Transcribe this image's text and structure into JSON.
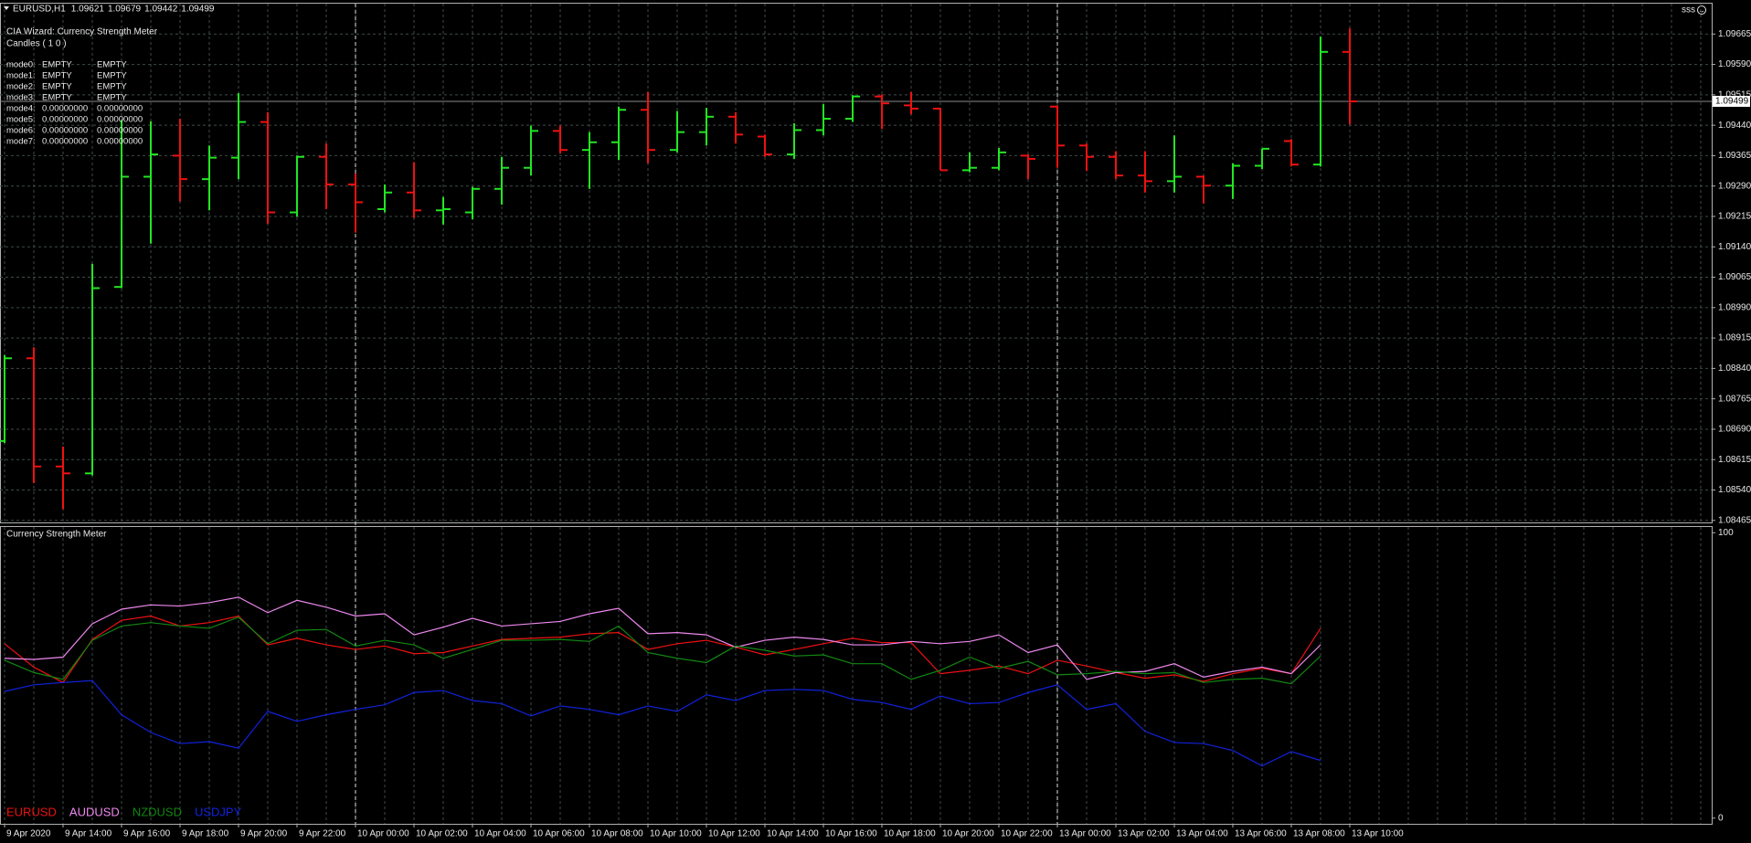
{
  "chart_data": [
    {
      "type": "ohlc",
      "title": "EURUSD,H1",
      "account": "sss",
      "annotations": [
        "CIA Wizard: Currency Strength Meter",
        "Candles ( 1 0 )"
      ],
      "info_rows": [
        [
          "mode0:",
          "EMPTY",
          "EMPTY"
        ],
        [
          "mode1:",
          "EMPTY",
          "EMPTY"
        ],
        [
          "mode2:",
          "EMPTY",
          "EMPTY"
        ],
        [
          "mode3:",
          "EMPTY",
          "EMPTY"
        ],
        [
          "mode4:",
          "0.00000000",
          "0.00000000"
        ],
        [
          "mode5:",
          "0.00000000",
          "0.00000000"
        ],
        [
          "mode6:",
          "0.00000000",
          "0.00000000"
        ],
        [
          "mode7:",
          "0.00000000",
          "0.00000000"
        ]
      ],
      "categories": [
        "9 Apr 2020",
        null,
        "9 Apr 14:00",
        null,
        "9 Apr 16:00",
        null,
        "9 Apr 18:00",
        null,
        "9 Apr 20:00",
        null,
        "9 Apr 22:00",
        null,
        "10 Apr 00:00",
        null,
        "10 Apr 02:00",
        null,
        "10 Apr 04:00",
        null,
        "10 Apr 06:00",
        null,
        "10 Apr 08:00",
        null,
        "10 Apr 10:00",
        null,
        "10 Apr 12:00",
        null,
        "10 Apr 14:00",
        null,
        "10 Apr 16:00",
        null,
        "10 Apr 18:00",
        null,
        "10 Apr 20:00",
        null,
        "10 Apr 22:00",
        null,
        "13 Apr 00:00",
        null,
        "13 Apr 02:00",
        null,
        "13 Apr 04:00",
        null,
        "13 Apr 06:00",
        null,
        "13 Apr 08:00",
        null,
        "13 Apr 10:00"
      ],
      "open": [
        1.08661,
        1.08865,
        1.08598,
        1.08581,
        1.09041,
        1.09313,
        1.09365,
        1.09307,
        1.0936,
        1.09448,
        1.09225,
        1.09362,
        1.09294,
        1.09233,
        1.09274,
        1.0923,
        1.09225,
        1.09283,
        1.09335,
        1.09426,
        1.09379,
        1.09398,
        1.09478,
        1.09379,
        1.09423,
        1.09461,
        1.09412,
        1.09368,
        1.09428,
        1.09456,
        1.09511,
        1.09489,
        1.09481,
        1.09329,
        1.09335,
        1.09365,
        1.09486,
        1.0939,
        1.09362,
        1.09316,
        1.09302,
        1.09313,
        1.09291,
        1.0934,
        1.09401,
        1.09343,
        1.09621
      ],
      "high": [
        1.08873,
        1.08892,
        1.08647,
        1.09098,
        1.09453,
        1.0945,
        1.09456,
        1.0939,
        1.09519,
        1.09472,
        1.09365,
        1.09395,
        1.09321,
        1.09294,
        1.09349,
        1.09263,
        1.09288,
        1.09362,
        1.09439,
        1.09439,
        1.09423,
        1.09486,
        1.09522,
        1.09475,
        1.09483,
        1.09472,
        1.09417,
        1.09445,
        1.09492,
        1.09514,
        1.09516,
        1.09522,
        1.09483,
        1.09373,
        1.09384,
        1.09368,
        1.09489,
        1.09395,
        1.09376,
        1.09376,
        1.09415,
        1.09316,
        1.09346,
        1.09382,
        1.09406,
        1.09659,
        1.09679
      ],
      "low": [
        1.08656,
        1.08557,
        1.08493,
        1.08576,
        1.09038,
        1.09148,
        1.09252,
        1.0923,
        1.09307,
        1.09197,
        1.09214,
        1.09233,
        1.09175,
        1.09225,
        1.09211,
        1.09195,
        1.09208,
        1.09244,
        1.09316,
        1.09371,
        1.09283,
        1.09354,
        1.09346,
        1.09373,
        1.0939,
        1.09395,
        1.09362,
        1.09357,
        1.09415,
        1.09448,
        1.09431,
        1.09467,
        1.09329,
        1.09324,
        1.09329,
        1.09307,
        1.09335,
        1.09327,
        1.09307,
        1.09274,
        1.09274,
        1.09247,
        1.09258,
        1.09332,
        1.09338,
        1.09338,
        1.09442
      ],
      "close": [
        1.08865,
        1.08598,
        1.08581,
        1.09038,
        1.09313,
        1.09368,
        1.09307,
        1.0936,
        1.09448,
        1.09225,
        1.09362,
        1.09294,
        1.0925,
        1.09274,
        1.0923,
        1.09233,
        1.09283,
        1.09335,
        1.09426,
        1.09379,
        1.09398,
        1.09478,
        1.09379,
        1.09423,
        1.09461,
        1.09417,
        1.09368,
        1.09428,
        1.09456,
        1.09511,
        1.09494,
        1.09481,
        1.09329,
        1.09335,
        1.09373,
        1.09357,
        1.0939,
        1.09362,
        1.09316,
        1.09302,
        1.09313,
        1.09291,
        1.0934,
        1.09382,
        1.09343,
        1.09621,
        1.09499
      ],
      "up_color": "#22e622",
      "down_color": "#ee1111",
      "ylim": [
        1.0846,
        1.0974
      ],
      "yticks": [
        1.09665,
        {
          "value": 1.0959,
          "label": "1.09590"
        },
        1.09515,
        {
          "value": 1.0944,
          "label": "1.09440"
        },
        1.09365,
        {
          "value": 1.0929,
          "label": "1.09290"
        },
        1.09215,
        {
          "value": 1.0914,
          "label": "1.09140"
        },
        1.09065,
        {
          "value": 1.0899,
          "label": "1.08990"
        },
        1.08915,
        {
          "value": 1.0884,
          "label": "1.08840"
        },
        1.08765,
        {
          "value": 1.0869,
          "label": "1.08690"
        },
        1.08615,
        {
          "value": 1.0854,
          "label": "1.08540"
        },
        1.08465
      ],
      "grid": true
    },
    {
      "type": "line",
      "title": "Currency Strength Meter",
      "series": [
        {
          "name": "EURUSD",
          "color": "#ee1111",
          "values": [
            61.1,
            52.9,
            47.5,
            62.6,
            69.3,
            70.8,
            67.3,
            68.5,
            70.8,
            60.7,
            63.0,
            60.7,
            59.1,
            60.3,
            57.6,
            58.0,
            60.3,
            62.6,
            63.0,
            63.4,
            64.6,
            65.0,
            59.1,
            61.1,
            62.3,
            59.9,
            57.2,
            59.1,
            61.1,
            63.0,
            61.5,
            61.5,
            50.6,
            51.8,
            53.3,
            50.6,
            55.3,
            53.3,
            51.0,
            49.0,
            50.2,
            47.9,
            50.6,
            52.5,
            50.6,
            66.5,
            null
          ]
        },
        {
          "name": "AUDUSD",
          "color": "#ee88ee",
          "values": [
            56.0,
            55.6,
            56.4,
            68.1,
            73.2,
            74.7,
            74.3,
            75.5,
            77.4,
            72.0,
            76.3,
            73.9,
            70.8,
            71.6,
            64.2,
            66.9,
            70.0,
            67.3,
            68.1,
            68.9,
            71.6,
            73.5,
            64.6,
            65.0,
            64.2,
            59.9,
            62.3,
            63.4,
            62.6,
            60.7,
            60.7,
            61.9,
            61.1,
            61.9,
            64.2,
            58.0,
            60.7,
            48.6,
            51.0,
            51.4,
            54.1,
            49.4,
            51.4,
            52.9,
            50.6,
            60.7,
            null
          ]
        },
        {
          "name": "NZDUSD",
          "color": "#118811",
          "values": [
            55.3,
            51.0,
            48.6,
            62.3,
            67.3,
            68.5,
            67.3,
            66.5,
            70.4,
            61.1,
            65.8,
            66.1,
            60.3,
            62.3,
            60.7,
            56.0,
            59.1,
            62.3,
            62.3,
            62.6,
            61.9,
            67.3,
            58.0,
            56.0,
            54.5,
            60.3,
            58.8,
            56.8,
            57.2,
            54.1,
            54.1,
            48.6,
            51.8,
            56.4,
            52.5,
            54.9,
            50.2,
            50.6,
            51.4,
            50.6,
            51.0,
            47.5,
            48.6,
            49.0,
            47.1,
            56.8,
            null
          ]
        },
        {
          "name": "USDJPY",
          "color": "#1122dd",
          "values": [
            44.4,
            46.7,
            47.5,
            48.2,
            36.2,
            30.0,
            26.1,
            26.8,
            24.5,
            37.4,
            33.9,
            36.2,
            38.1,
            39.7,
            44.0,
            44.7,
            41.2,
            40.1,
            35.8,
            39.3,
            38.1,
            36.2,
            39.3,
            37.4,
            43.2,
            41.2,
            44.7,
            45.1,
            44.7,
            41.6,
            40.5,
            38.1,
            42.8,
            40.1,
            40.5,
            44.0,
            46.7,
            38.1,
            40.1,
            30.4,
            26.5,
            26.1,
            23.7,
            18.3,
            23.3,
            20.2,
            null
          ]
        }
      ],
      "ylim": [
        -2,
        102
      ],
      "yticks": [
        0,
        100
      ],
      "legend": "bottom-left"
    }
  ]
}
